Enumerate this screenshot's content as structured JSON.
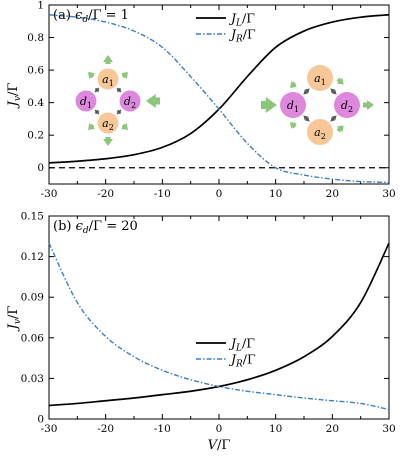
{
  "chart_data": [
    {
      "type": "line",
      "title": "(a) ϵd/Γ = 1",
      "xlabel": "",
      "ylabel": "Jv/Γ",
      "xlim": [
        -30,
        30
      ],
      "ylim": [
        -0.1,
        1.0
      ],
      "xticks": [
        "-30",
        "-20",
        "-10",
        "0",
        "10",
        "20",
        "30"
      ],
      "yticks": [
        "0",
        "0.2",
        "0.4",
        "0.6",
        "0.8",
        "1"
      ],
      "legend_position": "top-center",
      "reference_line": {
        "y": 0,
        "style": "dashed"
      },
      "series": [
        {
          "name": "JL/Γ",
          "color": "#000000",
          "style": "solid",
          "x": [
            -30,
            -25,
            -20,
            -15,
            -10,
            -5,
            0,
            5,
            10,
            15,
            20,
            25,
            30
          ],
          "y": [
            0.03,
            0.04,
            0.055,
            0.08,
            0.125,
            0.21,
            0.36,
            0.56,
            0.74,
            0.84,
            0.895,
            0.925,
            0.94
          ]
        },
        {
          "name": "JR/Γ",
          "color": "#3a7fc4",
          "style": "dash-dot",
          "x": [
            -30,
            -25,
            -20,
            -15,
            -10,
            -5,
            0,
            5,
            10,
            15,
            20,
            25,
            30
          ],
          "y": [
            0.94,
            0.925,
            0.895,
            0.84,
            0.74,
            0.56,
            0.36,
            0.15,
            0.0,
            -0.045,
            -0.07,
            -0.085,
            -0.09
          ]
        }
      ]
    },
    {
      "type": "line",
      "title": "(b) ϵd/Γ = 20",
      "xlabel": "V/Γ",
      "ylabel": "Jv/Γ",
      "xlim": [
        -30,
        30
      ],
      "ylim": [
        0,
        0.15
      ],
      "xticks": [
        "-30",
        "-20",
        "-10",
        "0",
        "10",
        "20",
        "30"
      ],
      "yticks": [
        "0",
        "0.03",
        "0.06",
        "0.09",
        "0.12",
        "0.15"
      ],
      "legend_position": "center",
      "series": [
        {
          "name": "JL/Γ",
          "color": "#000000",
          "style": "solid",
          "x": [
            -30,
            -25,
            -20,
            -15,
            -10,
            -5,
            0,
            5,
            10,
            15,
            20,
            25,
            30
          ],
          "y": [
            0.01,
            0.0115,
            0.0135,
            0.0155,
            0.018,
            0.0205,
            0.024,
            0.029,
            0.036,
            0.046,
            0.061,
            0.086,
            0.13
          ]
        },
        {
          "name": "JR/Γ",
          "color": "#3a7fc4",
          "style": "dash-dot",
          "x": [
            -30,
            -25,
            -20,
            -15,
            -10,
            -5,
            0,
            5,
            10,
            15,
            20,
            25,
            30
          ],
          "y": [
            0.13,
            0.086,
            0.061,
            0.046,
            0.036,
            0.029,
            0.024,
            0.0205,
            0.018,
            0.0155,
            0.0135,
            0.0115,
            0.007
          ]
        }
      ]
    }
  ],
  "insets": {
    "left": {
      "top": "a1",
      "left": "d1",
      "right": "d2",
      "bottom": "a2"
    },
    "right": {
      "top": "a1",
      "left": "d1",
      "right": "d2",
      "bottom": "a2"
    }
  },
  "colors": {
    "node_a": "#f7c797",
    "node_d": "#dd88dd",
    "arrow": "#8bc77a",
    "jr": "#3a7fc4"
  }
}
